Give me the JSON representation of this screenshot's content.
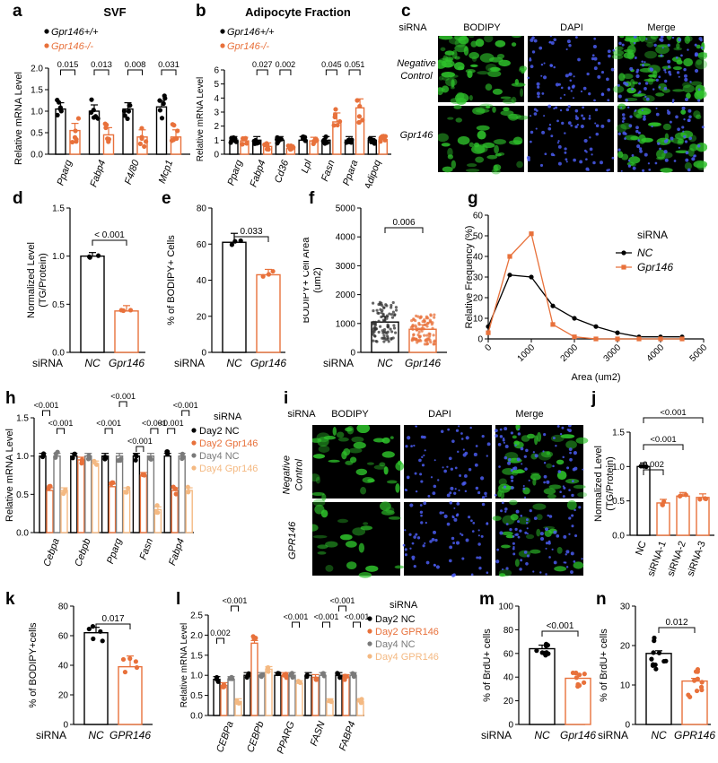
{
  "colors": {
    "black": "#000000",
    "orange": "#E8713B",
    "gray": "#7A7A7A",
    "peach": "#F4B982",
    "bodipy": "#2EC22B",
    "dapi": "#2A3BC8"
  },
  "panels": {
    "a": "a",
    "b": "b",
    "c": "c",
    "d": "d",
    "e": "e",
    "f": "f",
    "g": "g",
    "h": "h",
    "i": "i",
    "j": "j",
    "k": "k",
    "l": "l",
    "m": "m",
    "n": "n"
  },
  "micrograph_c": {
    "siRNA": "siRNA",
    "col1": "BODIPY",
    "col2": "DAPI",
    "col3": "Merge",
    "row1": "Negative Control",
    "row2": "Gpr146"
  },
  "micrograph_i": {
    "siRNA": "siRNA",
    "col1": "BODIPY",
    "col2": "DAPI",
    "col3": "Merge",
    "row1": "Negative Control",
    "row2": "GPR146"
  },
  "chart_data": [
    {
      "panel": "a",
      "type": "bar",
      "title": "SVF",
      "ylabel": "Relative mRNA Level",
      "ylim": [
        0,
        2.0
      ],
      "yticks": [
        0,
        0.5,
        1.0,
        1.5,
        2.0
      ],
      "categories": [
        "Pparg",
        "Fabp4",
        "F4/80",
        "Mcp1"
      ],
      "series": [
        {
          "name": "Gpr146+/+",
          "values": [
            1.05,
            1.0,
            1.05,
            1.1
          ]
        },
        {
          "name": "Gpr146-/-",
          "values": [
            0.55,
            0.45,
            0.4,
            0.4
          ]
        }
      ],
      "pvalues": [
        "0.015",
        "0.013",
        "0.008",
        "0.031"
      ]
    },
    {
      "panel": "b",
      "type": "bar",
      "title": "Adipocyte Fraction",
      "ylabel": "Relative mRNA Level",
      "ylim": [
        0,
        6
      ],
      "yticks": [
        0,
        1,
        2,
        3,
        4,
        5,
        6
      ],
      "categories": [
        "Pparg",
        "Fabp4",
        "Cd36",
        "Lpl",
        "Fasn",
        "Ppara",
        "Adipoq"
      ],
      "series": [
        {
          "name": "Gpr146+/+",
          "values": [
            1.0,
            1.0,
            1.0,
            1.0,
            1.0,
            1.0,
            1.0
          ]
        },
        {
          "name": "Gpr146-/-",
          "values": [
            0.95,
            0.55,
            0.4,
            0.95,
            2.3,
            3.3,
            1.05
          ]
        }
      ],
      "pvalues": [
        "",
        "0.027",
        "0.002",
        "",
        "0.045",
        "0.051",
        ""
      ]
    },
    {
      "panel": "d",
      "type": "bar",
      "ylabel": "Normalized Level (TG/Protein)",
      "ylim": [
        0,
        1.5
      ],
      "yticks": [
        0,
        0.5,
        1.0,
        1.5
      ],
      "xprefix": "siRNA",
      "categories": [
        "NC",
        "Gpr146"
      ],
      "values": [
        1.0,
        0.43
      ],
      "pvalues": [
        "< 0.001"
      ]
    },
    {
      "panel": "e",
      "type": "bar",
      "ylabel": "% of BODIPY+ Cells",
      "ylim": [
        0,
        80
      ],
      "yticks": [
        0,
        20,
        40,
        60,
        80
      ],
      "xprefix": "siRNA",
      "categories": [
        "NC",
        "Gpr146"
      ],
      "values": [
        61,
        43
      ],
      "pvalues": [
        "0.033"
      ]
    },
    {
      "panel": "f",
      "type": "bar",
      "ylabel": "BODIPY+ Cell Area (um2)",
      "ylim": [
        0,
        5000
      ],
      "yticks": [
        0,
        1000,
        2000,
        3000,
        4000,
        5000
      ],
      "xprefix": "siRNA",
      "categories": [
        "NC",
        "Gpr146"
      ],
      "values": [
        1050,
        800
      ],
      "pvalues": [
        "0.006"
      ]
    },
    {
      "panel": "g",
      "type": "line",
      "ylabel": "Relative Frequency (%)",
      "xlabel": "Area (um2)",
      "xlim": [
        0,
        5000
      ],
      "ylim": [
        0,
        60
      ],
      "xticks": [
        0,
        1000,
        2000,
        3000,
        4000,
        5000
      ],
      "yticks": [
        0,
        10,
        20,
        30,
        40,
        50,
        60
      ],
      "legend_title": "siRNA",
      "series": [
        {
          "name": "NC",
          "x": [
            0,
            500,
            1000,
            1500,
            2000,
            2500,
            3000,
            3500,
            4000,
            4500
          ],
          "y": [
            6,
            31,
            30,
            16,
            10,
            6,
            3,
            1,
            1,
            1
          ]
        },
        {
          "name": "Gpr146",
          "x": [
            0,
            500,
            1000,
            1500,
            2000,
            2500,
            3000,
            3500,
            4000,
            4500
          ],
          "y": [
            3,
            40,
            51,
            7,
            1,
            0,
            0,
            0,
            0,
            0
          ]
        }
      ]
    },
    {
      "panel": "h",
      "type": "bar",
      "ylabel": "Relative mRNA Level",
      "ylim": [
        0,
        1.5
      ],
      "yticks": [
        0,
        0.5,
        1.0,
        1.5
      ],
      "legend_title": "siRNA",
      "categories": [
        "Cebpa",
        "Cebpb",
        "Pparg",
        "Fasn",
        "Fabp4"
      ],
      "series": [
        {
          "name": "Day2 NC",
          "values": [
            1.0,
            1.0,
            1.0,
            1.0,
            1.0
          ]
        },
        {
          "name": "Day2 Gpr146",
          "values": [
            0.55,
            0.95,
            0.6,
            0.75,
            0.55
          ]
        },
        {
          "name": "Day4 NC",
          "values": [
            1.0,
            1.0,
            1.0,
            1.0,
            1.0
          ]
        },
        {
          "name": "Day4 Gpr146",
          "values": [
            0.55,
            0.9,
            0.55,
            0.3,
            0.55
          ]
        }
      ],
      "pvalues": [
        "<0.001",
        "<0.001",
        "<0.001",
        "<0.001",
        "<0.001",
        "<0.001",
        "<0.001",
        "<0.001"
      ]
    },
    {
      "panel": "j",
      "type": "bar",
      "ylabel": "Normalized Level (TG/Protein)",
      "ylim": [
        0,
        1.5
      ],
      "yticks": [
        0,
        0.5,
        1.0,
        1.5
      ],
      "categories": [
        "NC",
        "siRNA-1",
        "siRNA-2",
        "siRNA-3"
      ],
      "values": [
        1.0,
        0.47,
        0.57,
        0.55
      ],
      "pvalues": [
        "0.002",
        "<0.001",
        "<0.001"
      ]
    },
    {
      "panel": "k",
      "type": "bar",
      "ylabel": "% of BODIPY+cells",
      "ylim": [
        0,
        80
      ],
      "yticks": [
        0,
        20,
        40,
        60,
        80
      ],
      "xprefix": "siRNA",
      "categories": [
        "NC",
        "GPR146"
      ],
      "values": [
        62,
        39
      ],
      "pvalues": [
        "0.017"
      ]
    },
    {
      "panel": "l",
      "type": "bar",
      "ylabel": "Relative mRNA Level",
      "ylim": [
        0,
        2.5
      ],
      "yticks": [
        0,
        0.5,
        1.0,
        1.5,
        2.0,
        2.5
      ],
      "legend_title": "siRNA",
      "categories": [
        "CEBPa",
        "CEBPb",
        "PPARG",
        "FASN",
        "FABP4"
      ],
      "series": [
        {
          "name": "Day2 NC",
          "values": [
            0.9,
            1.0,
            1.0,
            1.0,
            1.0
          ]
        },
        {
          "name": "Day2 GPR146",
          "values": [
            0.75,
            1.8,
            1.0,
            0.95,
            0.95
          ]
        },
        {
          "name": "Day4 NC",
          "values": [
            0.9,
            1.0,
            1.0,
            1.0,
            1.0
          ]
        },
        {
          "name": "Day4 GPR146",
          "values": [
            0.35,
            1.15,
            0.8,
            0.35,
            0.35
          ]
        }
      ],
      "pvalues": [
        "0.002",
        "<0.001",
        "<0.001",
        "<0.001",
        "<0.001",
        "<0.001"
      ]
    },
    {
      "panel": "m",
      "type": "bar",
      "ylabel": "% of BrdU+ cells",
      "ylim": [
        0,
        100
      ],
      "yticks": [
        0,
        20,
        40,
        60,
        80,
        100
      ],
      "xprefix": "siRNA",
      "categories": [
        "NC",
        "Gpr146"
      ],
      "values": [
        64,
        39
      ],
      "pvalues": [
        "<0.001"
      ]
    },
    {
      "panel": "n",
      "type": "bar",
      "ylabel": "% of BrdU+ cells",
      "ylim": [
        0,
        30
      ],
      "yticks": [
        0,
        10,
        20,
        30
      ],
      "xprefix": "siRNA",
      "categories": [
        "NC",
        "GPR146"
      ],
      "values": [
        18,
        11
      ],
      "pvalues": [
        "0.012"
      ]
    }
  ]
}
